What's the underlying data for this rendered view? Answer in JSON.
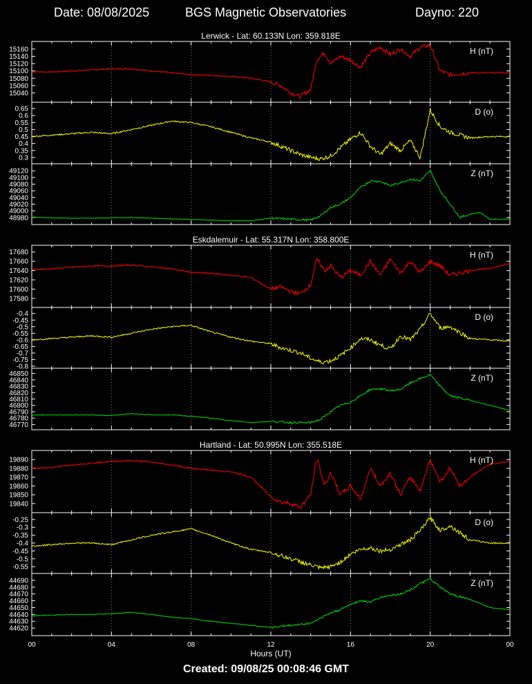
{
  "header": {
    "date_label": "Date: 08/08/2025",
    "title": "BGS Magnetic Observatories",
    "dayno_label": "Dayno: 220"
  },
  "footer": {
    "created": "Created: 09/08/25 00:08:46 GMT"
  },
  "chart_data": {
    "type": "line",
    "xlabel": "Hours (UT)",
    "xlim": [
      0,
      24
    ],
    "xticks": [
      "00",
      "04",
      "08",
      "12",
      "16",
      "20",
      "00"
    ],
    "grid": "dotted vertical lines at 4-hour intervals",
    "colors": {
      "H": "#ff0000",
      "D": "#ffff00",
      "Z": "#00dd00",
      "background": "#000000",
      "axes": "#ffffff"
    },
    "stations": [
      {
        "title": "Lerwick - Lat: 60.133N Lon: 359.818E",
        "panels": [
          {
            "component": "H",
            "label": "H (nT)",
            "color": "#ff0000",
            "ylim": [
              15020,
              15175
            ],
            "yticks": [
              "15160",
              "15140",
              "15120",
              "15100",
              "15080",
              "15060",
              "15040"
            ],
            "series": {
              "x": [
                0,
                1,
                2,
                3,
                4,
                5,
                6,
                7,
                8,
                9,
                10,
                11,
                12,
                12.5,
                13,
                13.5,
                14,
                14.3,
                14.7,
                15,
                15.5,
                16,
                16.5,
                17,
                17.5,
                18,
                18.5,
                19,
                19.5,
                20,
                20.5,
                21,
                22,
                23,
                24
              ],
              "y": [
                15098,
                15097,
                15100,
                15103,
                15106,
                15106,
                15100,
                15095,
                15090,
                15088,
                15085,
                15080,
                15070,
                15060,
                15040,
                15030,
                15050,
                15130,
                15150,
                15120,
                15140,
                15130,
                15110,
                15150,
                15165,
                15145,
                15160,
                15140,
                15165,
                15170,
                15100,
                15090,
                15095,
                15095,
                15095
              ]
            }
          },
          {
            "component": "D",
            "label": "D (o)",
            "color": "#ffff00",
            "ylim": [
              0.27,
              0.68
            ],
            "yticks": [
              "0.65",
              "0.6",
              "0.55",
              "0.5",
              "0.45",
              "0.4",
              "0.35",
              "0.3"
            ],
            "series": {
              "x": [
                0,
                1,
                2,
                3,
                4,
                5,
                6,
                7,
                8,
                9,
                10,
                11,
                12,
                12.5,
                13,
                13.5,
                14,
                14.5,
                15,
                15.5,
                16,
                16.5,
                17,
                17.5,
                18,
                18.5,
                19,
                19.5,
                20,
                20.5,
                21,
                22,
                23,
                24
              ],
              "y": [
                0.45,
                0.46,
                0.47,
                0.48,
                0.47,
                0.5,
                0.53,
                0.56,
                0.55,
                0.52,
                0.48,
                0.44,
                0.41,
                0.38,
                0.35,
                0.32,
                0.3,
                0.29,
                0.31,
                0.37,
                0.43,
                0.48,
                0.38,
                0.32,
                0.4,
                0.35,
                0.42,
                0.3,
                0.64,
                0.52,
                0.48,
                0.44,
                0.45,
                0.45
              ]
            }
          },
          {
            "component": "Z",
            "label": "Z (nT)",
            "color": "#00dd00",
            "ylim": [
              48965,
              49135
            ],
            "yticks": [
              "49120",
              "49100",
              "49080",
              "49060",
              "49040",
              "49020",
              "49000",
              "48980"
            ],
            "series": {
              "x": [
                0,
                1,
                2,
                3,
                4,
                5,
                6,
                7,
                8,
                9,
                10,
                11,
                12,
                13,
                14,
                14.5,
                15,
                15.5,
                16,
                16.5,
                17,
                17.5,
                18,
                18.5,
                19,
                19.5,
                20,
                20.5,
                21,
                21.5,
                22,
                22.5,
                23,
                24
              ],
              "y": [
                48981,
                48979,
                48978,
                48978,
                48979,
                48980,
                48978,
                48976,
                48974,
                48972,
                48970,
                48970,
                48978,
                48975,
                48972,
                48985,
                49010,
                49020,
                49040,
                49070,
                49090,
                49088,
                49075,
                49085,
                49095,
                49090,
                49120,
                49060,
                49020,
                48980,
                48990,
                48995,
                48975,
                48975
              ]
            }
          }
        ]
      },
      {
        "title": "Eskdalemuir - Lat: 55.317N Lon: 358.800E",
        "panels": [
          {
            "component": "H",
            "label": "H (nT)",
            "color": "#ff0000",
            "ylim": [
              17565,
              17690
            ],
            "yticks": [
              "17680",
              "17660",
              "17640",
              "17620",
              "17600",
              "17580"
            ],
            "series": {
              "x": [
                0,
                1,
                2,
                3,
                4,
                5,
                6,
                7,
                8,
                9,
                10,
                11,
                12,
                12.5,
                13,
                13.5,
                14,
                14.3,
                14.7,
                15,
                15.5,
                16,
                16.5,
                17,
                17.5,
                18,
                18.5,
                19,
                19.5,
                20,
                20.5,
                21,
                22,
                23,
                24
              ],
              "y": [
                17642,
                17644,
                17647,
                17650,
                17650,
                17652,
                17648,
                17644,
                17636,
                17634,
                17630,
                17625,
                17600,
                17605,
                17595,
                17590,
                17610,
                17665,
                17640,
                17650,
                17625,
                17640,
                17630,
                17660,
                17630,
                17665,
                17635,
                17660,
                17635,
                17660,
                17650,
                17630,
                17640,
                17645,
                17655
              ]
            }
          },
          {
            "component": "D",
            "label": "D (o)",
            "color": "#ffff00",
            "ylim": [
              -0.8,
              -0.37
            ],
            "yticks": [
              "-0.4",
              "-0.45",
              "-0.5",
              "-0.55",
              "-0.6",
              "-0.65",
              "-0.7",
              "-0.75",
              "-0.8"
            ],
            "series": {
              "x": [
                0,
                1,
                2,
                3,
                4,
                5,
                6,
                7,
                8,
                9,
                10,
                11,
                12,
                12.5,
                13,
                13.5,
                14,
                14.5,
                15,
                15.5,
                16,
                16.5,
                17,
                17.5,
                18,
                18.5,
                19,
                19.5,
                20,
                20.5,
                21,
                22,
                23,
                24
              ],
              "y": [
                -0.6,
                -0.59,
                -0.58,
                -0.57,
                -0.58,
                -0.55,
                -0.52,
                -0.5,
                -0.49,
                -0.54,
                -0.58,
                -0.61,
                -0.63,
                -0.66,
                -0.68,
                -0.7,
                -0.74,
                -0.77,
                -0.76,
                -0.72,
                -0.66,
                -0.59,
                -0.6,
                -0.64,
                -0.67,
                -0.57,
                -0.6,
                -0.52,
                -0.4,
                -0.51,
                -0.5,
                -0.59,
                -0.6,
                -0.61
              ]
            }
          },
          {
            "component": "Z",
            "label": "Z (nT)",
            "color": "#00dd00",
            "ylim": [
              46765,
              46855
            ],
            "yticks": [
              "46850",
              "46840",
              "46830",
              "46820",
              "46810",
              "46800",
              "46790",
              "46780",
              "46770"
            ],
            "series": {
              "x": [
                0,
                1,
                2,
                3,
                4,
                5,
                6,
                7,
                8,
                9,
                10,
                11,
                12,
                13,
                14,
                14.5,
                15,
                15.5,
                16,
                16.5,
                17,
                17.5,
                18,
                18.5,
                19,
                19.5,
                20,
                20.5,
                21,
                22,
                23,
                24
              ],
              "y": [
                46785,
                46785,
                46785,
                46785,
                46784,
                46787,
                46785,
                46785,
                46783,
                46780,
                46776,
                46773,
                46775,
                46773,
                46773,
                46778,
                46790,
                46800,
                46805,
                46815,
                46825,
                46826,
                46823,
                46825,
                46835,
                46842,
                46848,
                46830,
                46815,
                46808,
                46800,
                46792
              ]
            }
          }
        ]
      },
      {
        "title": "Hartland - Lat: 50.995N Lon: 355.518E",
        "panels": [
          {
            "component": "H",
            "label": "H (nT)",
            "color": "#ff0000",
            "ylim": [
              19832,
              19898
            ],
            "yticks": [
              "19890",
              "19880",
              "19870",
              "19860",
              "19850",
              "19840"
            ],
            "series": {
              "x": [
                0,
                1,
                2,
                3,
                4,
                5,
                6,
                7,
                8,
                9,
                10,
                11,
                12,
                12.5,
                13,
                13.5,
                14,
                14.3,
                14.7,
                15,
                15.5,
                16,
                16.5,
                17,
                17.5,
                18,
                18.5,
                19,
                19.5,
                20,
                20.5,
                21,
                21.5,
                22,
                23,
                24
              ],
              "y": [
                19880,
                19881,
                19884,
                19886,
                19888,
                19889,
                19887,
                19884,
                19880,
                19878,
                19876,
                19870,
                19848,
                19842,
                19840,
                19836,
                19850,
                19892,
                19860,
                19875,
                19850,
                19860,
                19845,
                19880,
                19860,
                19875,
                19850,
                19870,
                19855,
                19890,
                19865,
                19880,
                19860,
                19870,
                19885,
                19888
              ]
            }
          },
          {
            "component": "D",
            "label": "D (o)",
            "color": "#ffff00",
            "ylim": [
              -0.58,
              -0.22
            ],
            "yticks": [
              "-0.25",
              "-0.3",
              "-0.35",
              "-0.4",
              "-0.45",
              "-0.5",
              "-0.55"
            ],
            "series": {
              "x": [
                0,
                1,
                2,
                3,
                4,
                5,
                6,
                7,
                8,
                9,
                10,
                11,
                12,
                12.5,
                13,
                13.5,
                14,
                14.5,
                15,
                15.5,
                16,
                16.5,
                17,
                17.5,
                18,
                18.5,
                19,
                19.5,
                20,
                20.5,
                21,
                22,
                23,
                24
              ],
              "y": [
                -0.42,
                -0.41,
                -0.4,
                -0.4,
                -0.41,
                -0.38,
                -0.35,
                -0.33,
                -0.31,
                -0.35,
                -0.4,
                -0.44,
                -0.46,
                -0.48,
                -0.5,
                -0.52,
                -0.54,
                -0.56,
                -0.55,
                -0.52,
                -0.47,
                -0.44,
                -0.43,
                -0.45,
                -0.44,
                -0.41,
                -0.38,
                -0.32,
                -0.24,
                -0.32,
                -0.29,
                -0.38,
                -0.4,
                -0.4
              ]
            }
          },
          {
            "component": "Z",
            "label": "Z (nT)",
            "color": "#00dd00",
            "ylim": [
              44612,
              44697
            ],
            "yticks": [
              "44690",
              "44680",
              "44670",
              "44660",
              "44650",
              "44640",
              "44630",
              "44620"
            ],
            "series": {
              "x": [
                0,
                1,
                2,
                3,
                4,
                5,
                6,
                7,
                8,
                9,
                10,
                11,
                12,
                13,
                14,
                14.5,
                15,
                15.5,
                16,
                16.5,
                17,
                17.5,
                18,
                18.5,
                19,
                19.5,
                20,
                20.5,
                21,
                22,
                23,
                24
              ],
              "y": [
                44638,
                44639,
                44640,
                44640,
                44641,
                44643,
                44640,
                44636,
                44634,
                44630,
                44627,
                44624,
                44621,
                44624,
                44627,
                44635,
                44642,
                44647,
                44655,
                44660,
                44658,
                44665,
                44668,
                44670,
                44676,
                44685,
                44692,
                44680,
                44670,
                44662,
                44650,
                44647
              ]
            }
          }
        ]
      }
    ]
  }
}
